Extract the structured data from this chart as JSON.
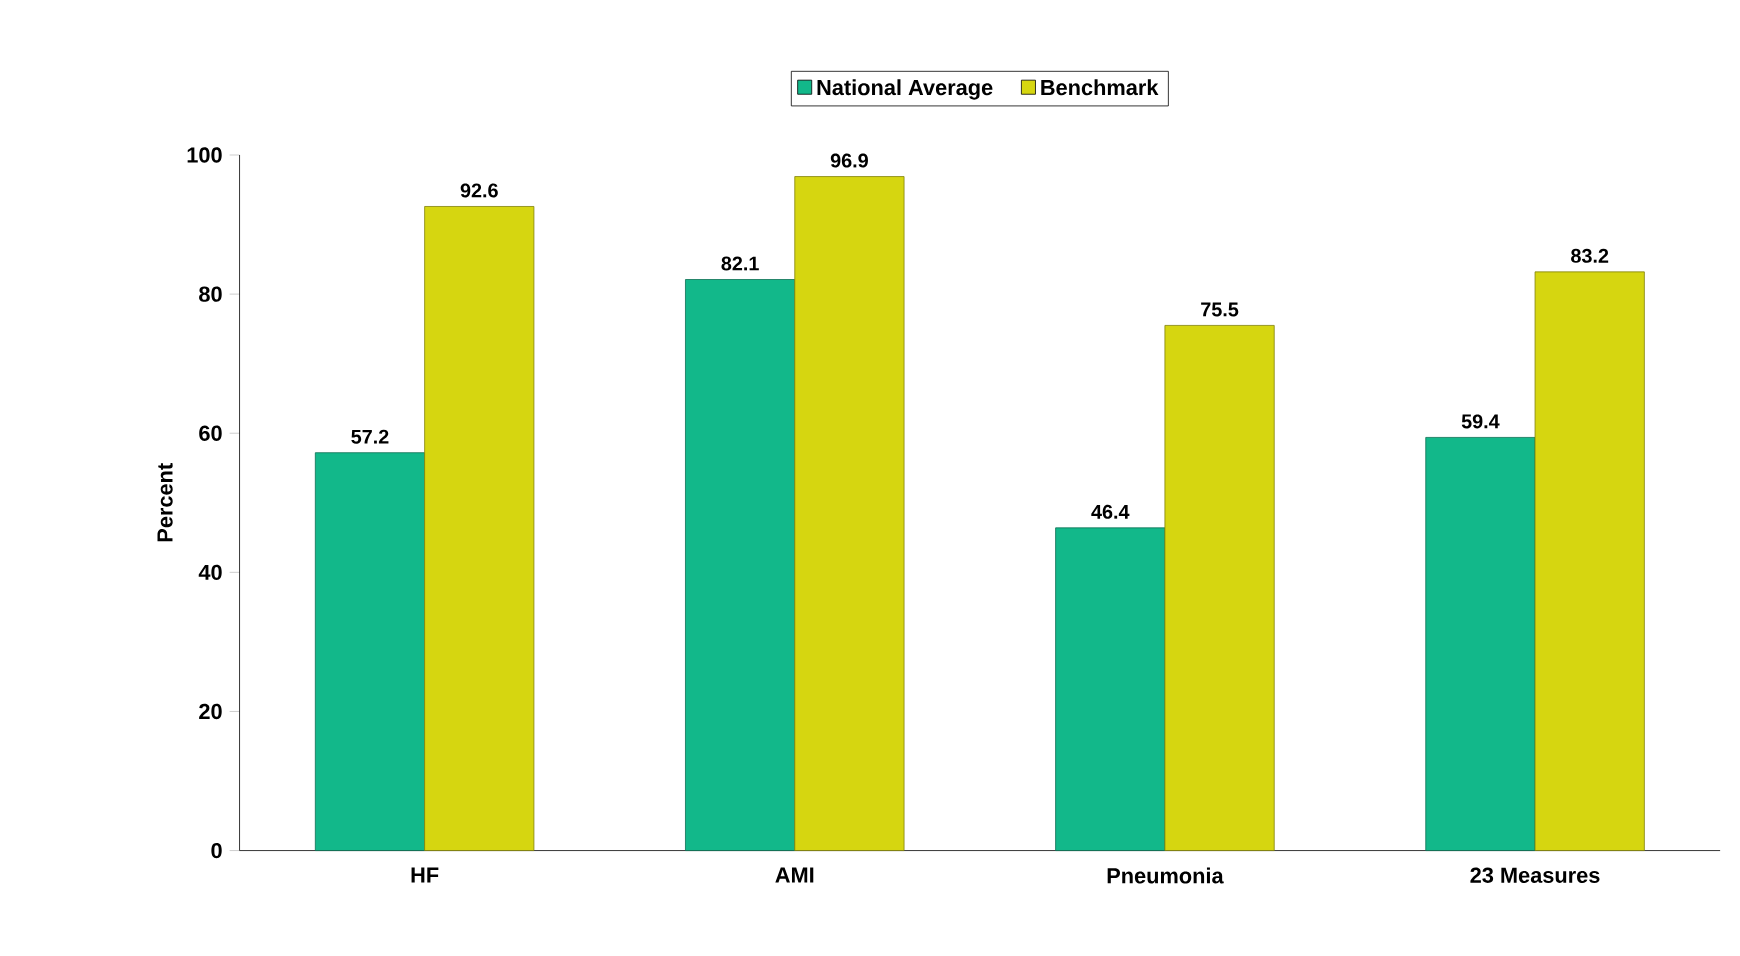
{
  "chart_data": {
    "type": "bar",
    "ylabel": "Percent",
    "categories": [
      "HF",
      "AMI",
      "Pneumonia",
      "23 Measures"
    ],
    "series": [
      {
        "name": "National Average",
        "color": "#12b88a",
        "values": [
          57.2,
          82.1,
          46.4,
          59.4
        ]
      },
      {
        "name": "Benchmark",
        "color": "#d6d610",
        "values": [
          92.6,
          96.9,
          75.5,
          83.2
        ]
      }
    ],
    "ylim": [
      0,
      100
    ],
    "yticks": [
      0,
      20,
      40,
      60,
      80,
      100
    ],
    "data_labels": true,
    "legend": "top"
  }
}
